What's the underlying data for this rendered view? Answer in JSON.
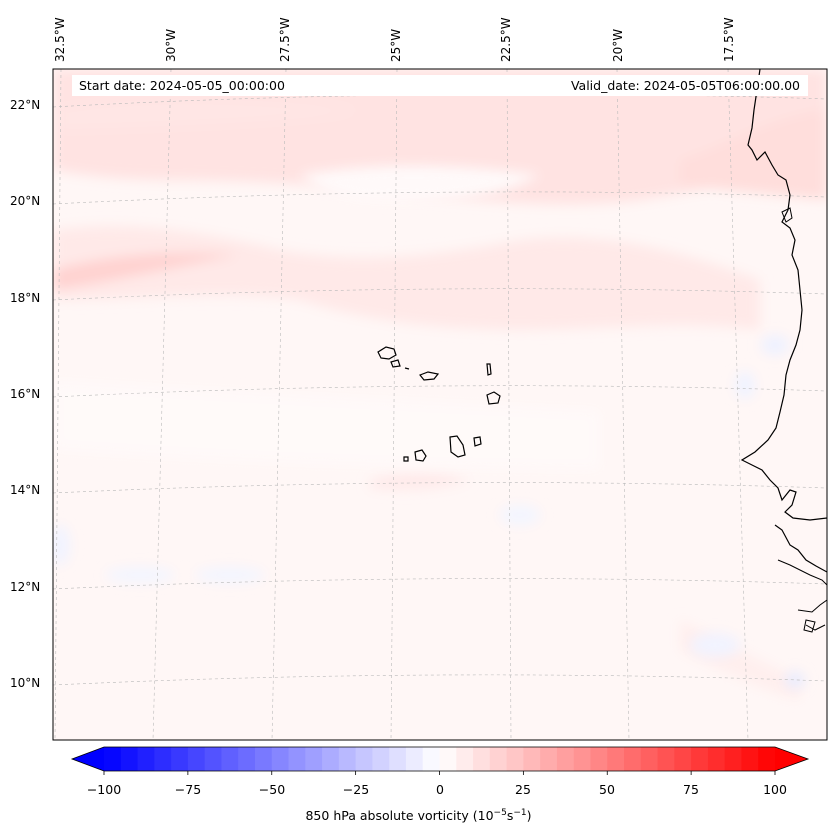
{
  "header": {
    "start_date": "Start date: 2024-05-05_00:00:00",
    "valid_date": "Valid_date: 2024-05-05T06:00:00.00"
  },
  "map": {
    "lon_labels": [
      "32.5°W",
      "30°W",
      "27.5°W",
      "25°W",
      "22.5°W",
      "20°W",
      "17.5°W"
    ],
    "lat_labels": [
      "22°N",
      "20°N",
      "18°N",
      "16°N",
      "14°N",
      "12°N",
      "10°N"
    ],
    "field_name": "850 hPa absolute vorticity",
    "colors": {
      "positive": "#ff0000",
      "negative": "#0000ff",
      "neutral": "#ffffff",
      "coastline": "#000000",
      "gridline": "#b0b0b0"
    }
  },
  "colorbar": {
    "title_main": "850 hPa absolute vorticity (10",
    "title_exp1": "−5",
    "title_mid": "s",
    "title_exp2": "−1",
    "title_end": ")",
    "min": -100,
    "max": 100,
    "step": 5,
    "ticks": [
      "−100",
      "−75",
      "−50",
      "−25",
      "0",
      "25",
      "50",
      "75",
      "100"
    ]
  }
}
